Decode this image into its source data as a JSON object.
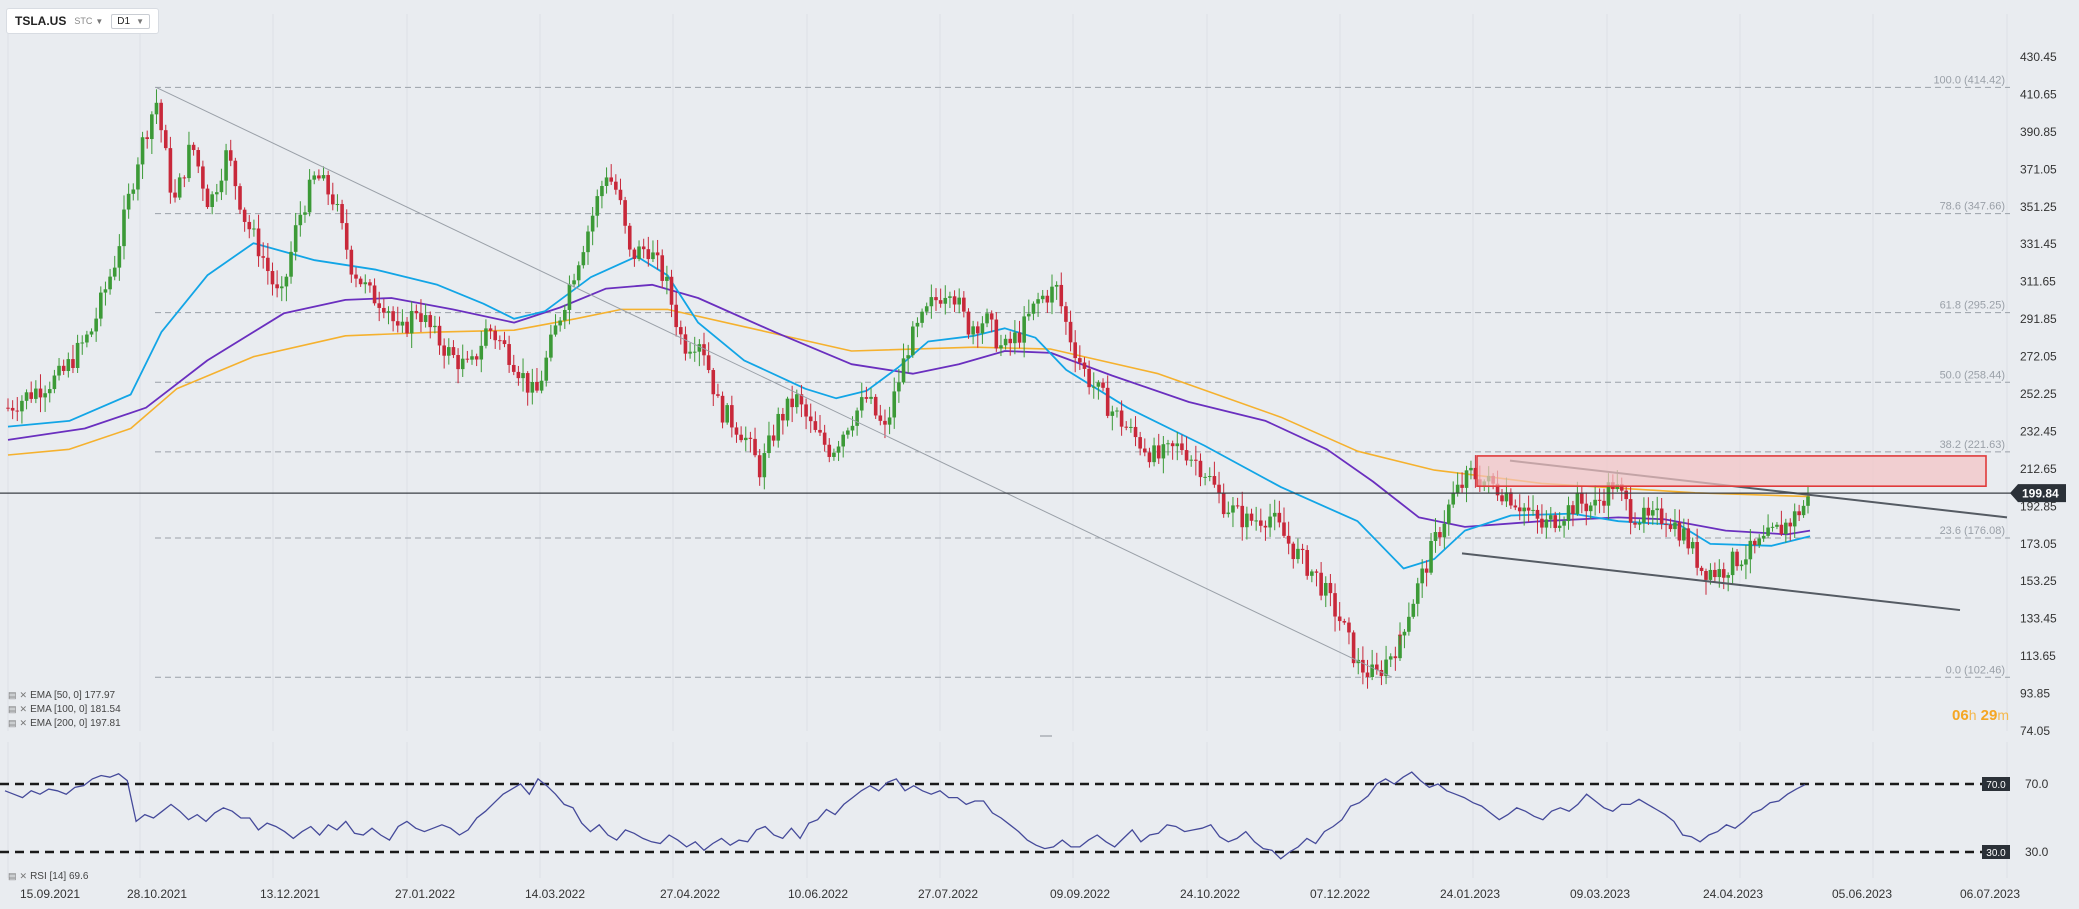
{
  "toolbar": {
    "symbol": "TSLA.US",
    "source": "STC",
    "timeframe": "D1"
  },
  "indicators": {
    "ema50": "EMA [50, 0] 177.97",
    "ema100": "EMA [100, 0] 181.54",
    "ema200": "EMA [200, 0] 197.81",
    "rsi": "RSI [14] 69.6"
  },
  "countdown": {
    "hours": "06",
    "h_unit": "h",
    "minutes": "29",
    "m_unit": "m"
  },
  "colors": {
    "up": "#3c9a37",
    "down": "#c8283a",
    "ema50": "#12a5e6",
    "ema100": "#6a2fbf",
    "ema200": "#f5b12e",
    "rsi": "#454a9a",
    "zone_fill": "#f4c3c3",
    "zone_stroke": "#e03a3a"
  },
  "chart_data": {
    "type": "candlestick",
    "symbol": "TSLA.US",
    "timeframe": "D1",
    "y_axis_ticks": [
      "430.45",
      "410.65",
      "390.85",
      "371.05",
      "351.25",
      "331.45",
      "311.65",
      "291.85",
      "272.05",
      "252.25",
      "232.45",
      "212.65",
      "192.85",
      "173.05",
      "153.25",
      "133.45",
      "113.65",
      "93.85",
      "74.05"
    ],
    "ylim": [
      74.05,
      430.45
    ],
    "x_axis_ticks": [
      "15.09.2021",
      "28.10.2021",
      "13.12.2021",
      "27.01.2022",
      "14.03.2022",
      "27.04.2022",
      "10.06.2022",
      "27.07.2022",
      "09.09.2022",
      "24.10.2022",
      "07.12.2022",
      "24.01.2023",
      "09.03.2023",
      "24.04.2023",
      "05.06.2023",
      "06.07.2023"
    ],
    "last_price": "199.84",
    "fibonacci": [
      {
        "label": "100.0 (414.42)",
        "price": 414.42
      },
      {
        "label": "78.6 (347.66)",
        "price": 347.66
      },
      {
        "label": "61.8 (295.25)",
        "price": 295.25
      },
      {
        "label": "50.0 (258.44)",
        "price": 258.44
      },
      {
        "label": "38.2 (221.63)",
        "price": 221.63
      },
      {
        "label": "23.6 (176.08)",
        "price": 176.08
      },
      {
        "label": "0.0 (102.46)",
        "price": 102.46
      }
    ],
    "resistance_zone": {
      "from_date": "24.01.2023",
      "low": 203.5,
      "high": 219.5
    },
    "trendlines": [
      {
        "from": [
          "04.11.2021",
          414.42
        ],
        "to": [
          "03.01.2023",
          102.5
        ]
      },
      {
        "from": [
          "20.02.2023",
          217
        ],
        "to": [
          "10.07.2023",
          187
        ]
      },
      {
        "from": [
          "27.01.2023",
          168
        ],
        "to": [
          "05.07.2023",
          138
        ]
      }
    ],
    "ema_50": [
      [
        0,
        235
      ],
      [
        8,
        238
      ],
      [
        16,
        252
      ],
      [
        20,
        285
      ],
      [
        26,
        315
      ],
      [
        32,
        332
      ],
      [
        40,
        323
      ],
      [
        48,
        318
      ],
      [
        56,
        310
      ],
      [
        62,
        300
      ],
      [
        66,
        292
      ],
      [
        70,
        296
      ],
      [
        76,
        314
      ],
      [
        82,
        325
      ],
      [
        86,
        315
      ],
      [
        90,
        290
      ],
      [
        96,
        270
      ],
      [
        104,
        255
      ],
      [
        108,
        250
      ],
      [
        112,
        254
      ],
      [
        116,
        266
      ],
      [
        120,
        280
      ],
      [
        126,
        283
      ],
      [
        130,
        287
      ],
      [
        134,
        282
      ],
      [
        138,
        265
      ],
      [
        146,
        245
      ],
      [
        156,
        225
      ],
      [
        166,
        203
      ],
      [
        176,
        185
      ],
      [
        182,
        160
      ],
      [
        186,
        165
      ],
      [
        190,
        180
      ],
      [
        196,
        188
      ],
      [
        204,
        189
      ],
      [
        210,
        185
      ],
      [
        218,
        183
      ],
      [
        222,
        173
      ],
      [
        230,
        172
      ],
      [
        235,
        177
      ]
    ],
    "ema_100": [
      [
        0,
        228
      ],
      [
        10,
        234
      ],
      [
        18,
        245
      ],
      [
        26,
        270
      ],
      [
        36,
        295
      ],
      [
        44,
        302
      ],
      [
        50,
        303
      ],
      [
        58,
        297
      ],
      [
        66,
        290
      ],
      [
        72,
        298
      ],
      [
        78,
        308
      ],
      [
        84,
        310
      ],
      [
        90,
        303
      ],
      [
        100,
        285
      ],
      [
        110,
        268
      ],
      [
        118,
        263
      ],
      [
        124,
        268
      ],
      [
        130,
        275
      ],
      [
        136,
        274
      ],
      [
        144,
        262
      ],
      [
        154,
        248
      ],
      [
        164,
        238
      ],
      [
        172,
        223
      ],
      [
        178,
        206
      ],
      [
        184,
        187
      ],
      [
        190,
        182
      ],
      [
        200,
        185
      ],
      [
        210,
        187
      ],
      [
        216,
        186
      ],
      [
        224,
        180
      ],
      [
        232,
        178
      ],
      [
        235,
        180
      ]
    ],
    "ema_200": [
      [
        0,
        220
      ],
      [
        8,
        223
      ],
      [
        16,
        234
      ],
      [
        22,
        255
      ],
      [
        32,
        272
      ],
      [
        44,
        283
      ],
      [
        56,
        285
      ],
      [
        66,
        286
      ],
      [
        74,
        292
      ],
      [
        80,
        297
      ],
      [
        86,
        297
      ],
      [
        98,
        286
      ],
      [
        110,
        275
      ],
      [
        126,
        277
      ],
      [
        136,
        276
      ],
      [
        150,
        263
      ],
      [
        166,
        240
      ],
      [
        176,
        222
      ],
      [
        186,
        212
      ],
      [
        200,
        205
      ],
      [
        220,
        200
      ],
      [
        235,
        198
      ]
    ],
    "rsi": {
      "levels": [
        70.0,
        30.0
      ],
      "last": 69.6,
      "values": [
        66,
        64,
        62,
        66,
        64,
        67,
        66,
        64,
        68,
        69,
        73,
        75,
        74,
        76,
        72,
        48,
        52,
        50,
        54,
        58,
        54,
        49,
        52,
        48,
        53,
        56,
        54,
        50,
        50,
        43,
        47,
        45,
        42,
        38,
        42,
        45,
        40,
        46,
        43,
        48,
        41,
        40,
        44,
        40,
        37,
        45,
        48,
        44,
        42,
        44,
        46,
        44,
        40,
        43,
        50,
        54,
        59,
        64,
        67,
        70,
        64,
        73,
        69,
        64,
        58,
        56,
        47,
        42,
        46,
        40,
        37,
        43,
        41,
        38,
        36,
        35,
        40,
        37,
        33,
        36,
        31,
        35,
        38,
        34,
        37,
        36,
        43,
        45,
        40,
        38,
        44,
        38,
        47,
        49,
        55,
        52,
        58,
        62,
        66,
        69,
        66,
        71,
        73,
        66,
        69,
        66,
        64,
        66,
        62,
        62,
        58,
        60,
        60,
        53,
        50,
        46,
        42,
        37,
        34,
        32,
        33,
        37,
        33,
        33,
        37,
        40,
        36,
        33,
        38,
        43,
        36,
        40,
        41,
        46,
        45,
        42,
        43,
        44,
        46,
        39,
        36,
        38,
        42,
        36,
        32,
        31,
        26,
        30,
        33,
        38,
        35,
        42,
        45,
        49,
        57,
        59,
        63,
        70,
        73,
        70,
        74,
        77,
        72,
        68,
        70,
        66,
        64,
        62,
        59,
        57,
        53,
        49,
        52,
        56,
        54,
        51,
        49,
        54,
        56,
        54,
        58,
        64,
        60,
        56,
        54,
        58,
        58,
        61,
        58,
        55,
        52,
        48,
        40,
        39,
        36,
        40,
        42,
        46,
        44,
        48,
        53,
        55,
        59,
        60,
        64,
        67,
        69.6
      ]
    }
  }
}
